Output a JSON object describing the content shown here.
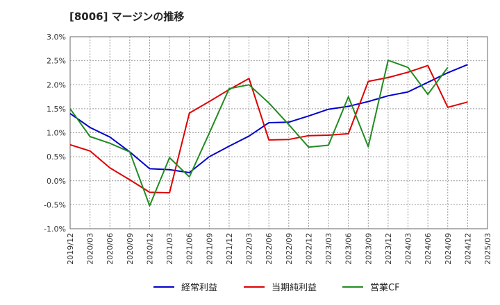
{
  "chart_data": {
    "type": "line",
    "title": "[8006]  マージンの推移",
    "xlabel": "",
    "ylabel": "",
    "ylim": [
      -1.0,
      3.0
    ],
    "yticks": [
      "3.0%",
      "2.5%",
      "2.0%",
      "1.5%",
      "1.0%",
      "0.5%",
      "0.0%",
      "-0.5%",
      "-1.0%"
    ],
    "yticks_values": [
      3.0,
      2.5,
      2.0,
      1.5,
      1.0,
      0.5,
      0.0,
      -0.5,
      -1.0
    ],
    "x": [
      "2019/12",
      "2020/03",
      "2020/06",
      "2020/09",
      "2020/12",
      "2021/03",
      "2021/06",
      "2021/09",
      "2021/12",
      "2022/03",
      "2022/06",
      "2022/09",
      "2022/12",
      "2023/03",
      "2023/06",
      "2023/09",
      "2023/12",
      "2024/03",
      "2024/06",
      "2024/09",
      "2024/12",
      "2025/03"
    ],
    "grid": true,
    "legend_position": "bottom",
    "series": [
      {
        "name": "経常利益",
        "color": "#0000cc",
        "values": [
          1.4,
          1.11,
          0.91,
          0.6,
          0.25,
          0.23,
          0.17,
          0.5,
          0.72,
          0.93,
          1.21,
          1.22,
          1.35,
          1.49,
          1.55,
          1.65,
          1.77,
          1.85,
          2.05,
          2.25,
          2.42,
          null
        ]
      },
      {
        "name": "当期純利益",
        "color": "#dd0000",
        "values": [
          0.75,
          0.62,
          0.27,
          0.02,
          -0.24,
          -0.25,
          1.41,
          1.65,
          1.9,
          2.13,
          0.85,
          0.86,
          0.94,
          0.95,
          0.98,
          2.07,
          2.15,
          2.26,
          2.4,
          1.53,
          1.64,
          null
        ]
      },
      {
        "name": "営業CF",
        "color": "#228b22",
        "values": [
          1.5,
          0.92,
          0.78,
          0.6,
          -0.52,
          0.48,
          0.08,
          0.99,
          1.92,
          2.0,
          1.62,
          1.17,
          0.7,
          0.74,
          1.75,
          0.71,
          2.51,
          2.36,
          1.8,
          2.36,
          null,
          null
        ]
      }
    ]
  }
}
